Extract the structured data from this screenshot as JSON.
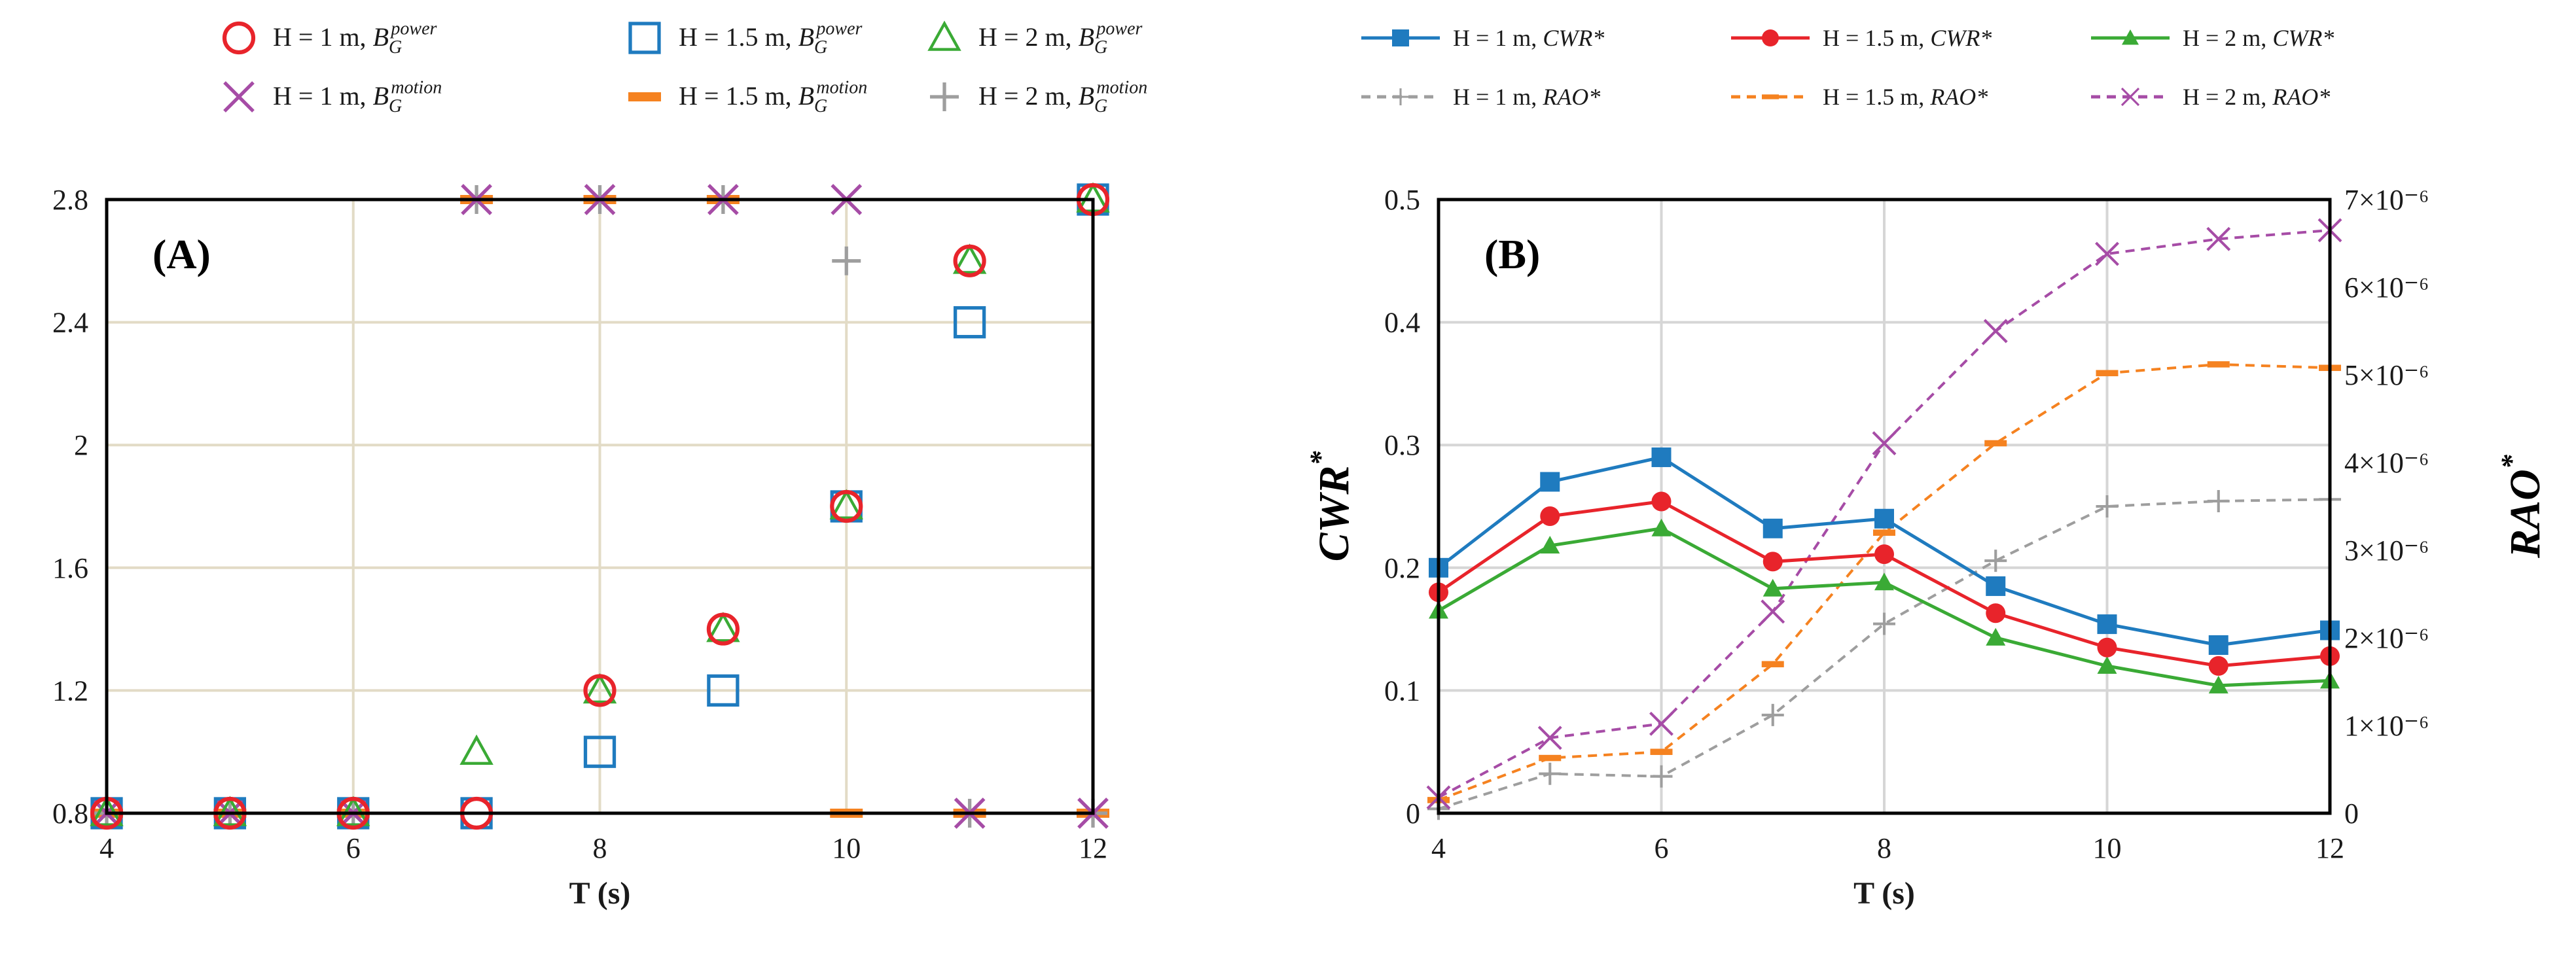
{
  "chart_data": [
    {
      "type": "scatter",
      "panel_label": "(A)",
      "xlabel": "T (s)",
      "ylabel": "",
      "xlim": [
        4,
        12
      ],
      "ylim": [
        0.8,
        2.8
      ],
      "x_ticks": [
        "4",
        "6",
        "8",
        "10",
        "12"
      ],
      "y_ticks": [
        "0.8",
        "1.2",
        "1.6",
        "2",
        "2.4",
        "2.8"
      ],
      "grid": true,
      "legend_position": "top",
      "x": [
        4,
        5,
        6,
        7,
        8,
        9,
        10,
        11,
        12
      ],
      "series": [
        {
          "name": "H = 1 m, B_G^power",
          "label_text": "H = 1 m,",
          "symbol": "B",
          "sub": "G",
          "sup": "power",
          "marker": "circle",
          "color": "#e8242b",
          "values": [
            0.8,
            0.8,
            0.8,
            0.8,
            1.2,
            1.4,
            1.8,
            2.6,
            2.8
          ]
        },
        {
          "name": "H = 1.5 m, B_G^power",
          "label_text": "H = 1.5 m,",
          "symbol": "B",
          "sub": "G",
          "sup": "power",
          "marker": "square",
          "color": "#1f7bbf",
          "values": [
            0.8,
            0.8,
            0.8,
            0.8,
            1.0,
            1.2,
            1.8,
            2.4,
            2.8
          ]
        },
        {
          "name": "H = 2 m, B_G^power",
          "label_text": "H = 2 m,",
          "symbol": "B",
          "sub": "G",
          "sup": "power",
          "marker": "triangle",
          "color": "#3aaa35",
          "values": [
            0.8,
            0.8,
            0.8,
            1.0,
            1.2,
            1.4,
            1.8,
            2.6,
            2.8
          ]
        },
        {
          "name": "H = 1 m, B_G^motion",
          "label_text": "H = 1 m,",
          "symbol": "B",
          "sub": "G",
          "sup": "motion",
          "marker": "x",
          "color": "#a64ca6",
          "values": [
            0.8,
            0.8,
            0.8,
            2.8,
            2.8,
            2.8,
            2.8,
            0.8,
            0.8
          ]
        },
        {
          "name": "H = 1.5 m, B_G^motion",
          "label_text": "H = 1.5 m,",
          "symbol": "B",
          "sub": "G",
          "sup": "motion",
          "marker": "dash",
          "color": "#f58220",
          "values": [
            0.8,
            0.8,
            0.8,
            2.8,
            2.8,
            2.8,
            0.8,
            0.8,
            0.8
          ]
        },
        {
          "name": "H = 2 m, B_G^motion",
          "label_text": "H = 2 m,",
          "symbol": "B",
          "sub": "G",
          "sup": "motion",
          "marker": "plus",
          "color": "#9e9e9e",
          "values": [
            0.8,
            0.8,
            0.8,
            2.8,
            2.8,
            2.8,
            2.6,
            0.8,
            0.8
          ]
        }
      ]
    },
    {
      "type": "line",
      "panel_label": "(B)",
      "xlabel": "T (s)",
      "ylabel_left": "CWR*",
      "ylabel_left_main": "CWR",
      "ylabel_right": "RAO*",
      "ylabel_right_main": "RAO",
      "ylabel_star": "*",
      "xlim": [
        4,
        12
      ],
      "ylim_left": [
        0,
        0.5
      ],
      "ylim_right": [
        0,
        7e-06
      ],
      "x_ticks": [
        "4",
        "6",
        "8",
        "10",
        "12"
      ],
      "y_ticks_left": [
        "0",
        "0.1",
        "0.2",
        "0.3",
        "0.4",
        "0.5"
      ],
      "y_ticks_right": [
        "0",
        "1×10⁻⁶",
        "2×10⁻⁶",
        "3×10⁻⁶",
        "4×10⁻⁶",
        "5×10⁻⁶",
        "6×10⁻⁶",
        "7×10⁻⁶"
      ],
      "grid": true,
      "legend_position": "top",
      "x": [
        4,
        5,
        6,
        7,
        8,
        9,
        10,
        11,
        12
      ],
      "series": [
        {
          "name": "H = 1 m, CWR*",
          "label_text": "H = 1 m,",
          "var": "CWR*",
          "axis": "left",
          "marker": "square",
          "color": "#1f7bbf",
          "dash": "solid",
          "values": [
            0.2,
            0.27,
            0.29,
            0.232,
            0.24,
            0.185,
            0.154,
            0.137,
            0.149
          ]
        },
        {
          "name": "H = 1.5 m, CWR*",
          "label_text": "H = 1.5 m,",
          "var": "CWR*",
          "axis": "left",
          "marker": "circle",
          "color": "#e8242b",
          "dash": "solid",
          "values": [
            0.18,
            0.242,
            0.254,
            0.205,
            0.211,
            0.163,
            0.135,
            0.12,
            0.128
          ]
        },
        {
          "name": "H = 2 m, CWR*",
          "label_text": "H = 2 m,",
          "var": "CWR*",
          "axis": "left",
          "marker": "triangle",
          "color": "#3aaa35",
          "dash": "solid",
          "values": [
            0.165,
            0.218,
            0.232,
            0.183,
            0.188,
            0.143,
            0.12,
            0.104,
            0.108
          ]
        },
        {
          "name": "H = 1 m, RAO*",
          "label_text": "H = 1 m,",
          "var": "RAO*",
          "axis": "right",
          "marker": "plus",
          "color": "#9e9e9e",
          "dash": "dashed",
          "values": [
            5e-08,
            4.5e-07,
            4.2e-07,
            1.12e-06,
            2.16e-06,
            2.88e-06,
            3.5e-06,
            3.56e-06,
            3.58e-06
          ]
        },
        {
          "name": "H = 1.5 m, RAO*",
          "label_text": "H = 1.5 m,",
          "var": "RAO*",
          "axis": "right",
          "marker": "dash",
          "color": "#f58220",
          "dash": "dashed",
          "values": [
            1.5e-07,
            6.3e-07,
            7e-07,
            1.7e-06,
            3.2e-06,
            4.22e-06,
            5.02e-06,
            5.12e-06,
            5.08e-06
          ]
        },
        {
          "name": "H = 2 m, RAO*",
          "label_text": "H = 2 m,",
          "var": "RAO*",
          "axis": "right",
          "marker": "x",
          "color": "#a64ca6",
          "dash": "dashed",
          "values": [
            1.8e-07,
            8.6e-07,
            1.02e-06,
            2.3e-06,
            4.22e-06,
            5.5e-06,
            6.38e-06,
            6.55e-06,
            6.65e-06
          ]
        }
      ]
    }
  ]
}
